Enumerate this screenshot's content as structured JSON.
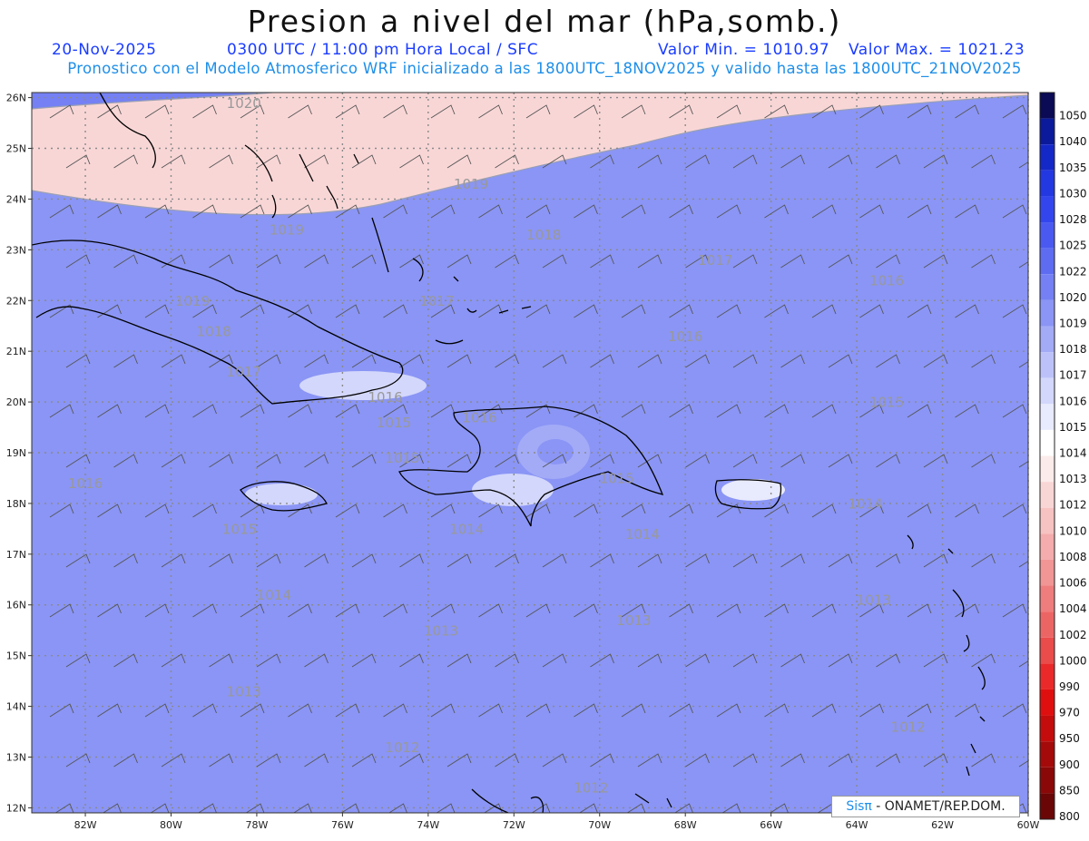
{
  "header": {
    "title": "Presion a nivel del mar (hPa,somb.)",
    "date": "20-Nov-2025",
    "time": "0300 UTC / 11:00 pm Hora Local / SFC",
    "vmin": "Valor Min. = 1010.97",
    "vmax": "Valor Max. = 1021.23",
    "model_line": "Pronostico con el Modelo Atmosferico WRF inicializado a las 1800UTC_18NOV2025 y valido hasta las  1800UTC_21NOV2025"
  },
  "map": {
    "lat_labels": [
      "26N",
      "25N",
      "24N",
      "23N",
      "22N",
      "21N",
      "20N",
      "19N",
      "18N",
      "17N",
      "16N",
      "15N",
      "14N",
      "13N",
      "12N"
    ],
    "lon_labels": [
      "82W",
      "80W",
      "78W",
      "76W",
      "74W",
      "72W",
      "70W",
      "68W",
      "66W",
      "64W",
      "62W",
      "60W"
    ],
    "isobar_labels": [
      {
        "text": "1020",
        "lon": -78.3,
        "lat": 25.8
      },
      {
        "text": "1019",
        "lon": -73.0,
        "lat": 24.2
      },
      {
        "text": "1019",
        "lon": -77.3,
        "lat": 23.3
      },
      {
        "text": "1018",
        "lon": -71.3,
        "lat": 23.2
      },
      {
        "text": "1017",
        "lon": -67.3,
        "lat": 22.7
      },
      {
        "text": "1016",
        "lon": -63.3,
        "lat": 22.3
      },
      {
        "text": "1017",
        "lon": -73.8,
        "lat": 21.9
      },
      {
        "text": "1019",
        "lon": -79.5,
        "lat": 21.9
      },
      {
        "text": "1018",
        "lon": -79.0,
        "lat": 21.3
      },
      {
        "text": "1016",
        "lon": -68.0,
        "lat": 21.2
      },
      {
        "text": "1017",
        "lon": -78.3,
        "lat": 20.5
      },
      {
        "text": "1016",
        "lon": -75.0,
        "lat": 20.0
      },
      {
        "text": "1015",
        "lon": -63.3,
        "lat": 19.9
      },
      {
        "text": "1015",
        "lon": -74.8,
        "lat": 19.5
      },
      {
        "text": "1016",
        "lon": -72.8,
        "lat": 19.6
      },
      {
        "text": "1015",
        "lon": -74.6,
        "lat": 18.8
      },
      {
        "text": "1016",
        "lon": -82.0,
        "lat": 18.3
      },
      {
        "text": "1015",
        "lon": -69.6,
        "lat": 18.4
      },
      {
        "text": "1015",
        "lon": -78.4,
        "lat": 17.4
      },
      {
        "text": "1014",
        "lon": -73.1,
        "lat": 17.4
      },
      {
        "text": "1014",
        "lon": -69.0,
        "lat": 17.3
      },
      {
        "text": "1014",
        "lon": -63.8,
        "lat": 17.9
      },
      {
        "text": "1014",
        "lon": -77.6,
        "lat": 16.1
      },
      {
        "text": "1013",
        "lon": -63.6,
        "lat": 16.0
      },
      {
        "text": "1013",
        "lon": -69.2,
        "lat": 15.6
      },
      {
        "text": "1013",
        "lon": -73.7,
        "lat": 15.4
      },
      {
        "text": "1013",
        "lon": -78.3,
        "lat": 14.2
      },
      {
        "text": "1012",
        "lon": -62.8,
        "lat": 13.5
      },
      {
        "text": "1012",
        "lon": -74.6,
        "lat": 13.1
      },
      {
        "text": "1012",
        "lon": -70.2,
        "lat": 12.3
      }
    ]
  },
  "colorbar": {
    "labels": [
      "1050",
      "1040",
      "1035",
      "1030",
      "1028",
      "1025",
      "1022",
      "1020",
      "1019",
      "1018",
      "1017",
      "1016",
      "1015",
      "1014",
      "1013",
      "1012",
      "1010",
      "1008",
      "1006",
      "1004",
      "1002",
      "1000",
      "990",
      "970",
      "950",
      "900",
      "850",
      "800"
    ],
    "colors": [
      "#0a0a55",
      "#0a1a9a",
      "#1428c8",
      "#2338e0",
      "#3346ee",
      "#4a5af0",
      "#5e6cf2",
      "#7480f3",
      "#8a95f5",
      "#a3abf7",
      "#bcc2f9",
      "#d3d7fb",
      "#e8eafd",
      "#ffffff",
      "#fcebeb",
      "#f9d6d6",
      "#f7c2c2",
      "#f4acac",
      "#f29595",
      "#ef7d7d",
      "#ec6565",
      "#ea4b4b",
      "#ea2a2a",
      "#e00f0f",
      "#c40c0c",
      "#a40a0a",
      "#8a0808",
      "#6a0606"
    ]
  },
  "credit": {
    "logo": "Sisπ",
    "text": "- ONAMET/REP.DOM."
  }
}
